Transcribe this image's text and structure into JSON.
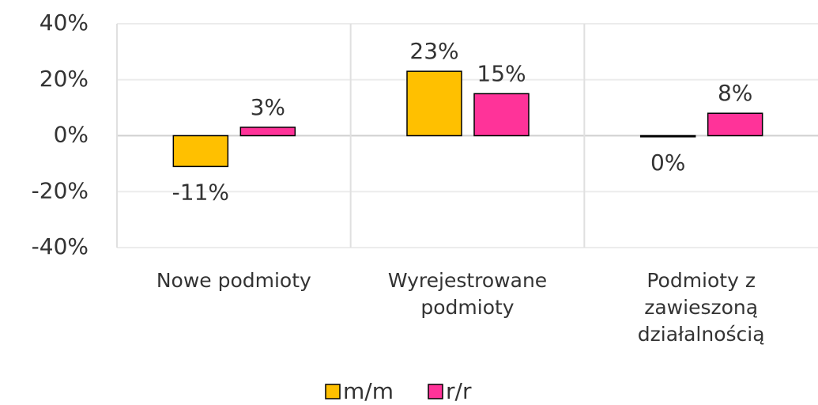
{
  "chart_data": {
    "type": "bar",
    "categories": [
      "Nowe podmioty",
      "Wyrejestrowane podmioty",
      "Podmioty z zawieszoną działalnością"
    ],
    "series": [
      {
        "name": "m/m",
        "color": "#FFC000",
        "values": [
          -11,
          23,
          -0.4
        ],
        "value_labels": [
          "-11%",
          "23%",
          "0%"
        ]
      },
      {
        "name": "r/r",
        "color": "#FF3399",
        "values": [
          3,
          15,
          8
        ],
        "value_labels": [
          "3%",
          "15%",
          "8%"
        ]
      }
    ],
    "ylim": [
      -40,
      40
    ],
    "yticks": [
      {
        "value": -40,
        "label": "-40%"
      },
      {
        "value": -20,
        "label": "-20%"
      },
      {
        "value": 0,
        "label": "0%"
      },
      {
        "value": 20,
        "label": "20%"
      },
      {
        "value": 40,
        "label": "40%"
      }
    ],
    "grid": true,
    "legend": "bottom"
  }
}
